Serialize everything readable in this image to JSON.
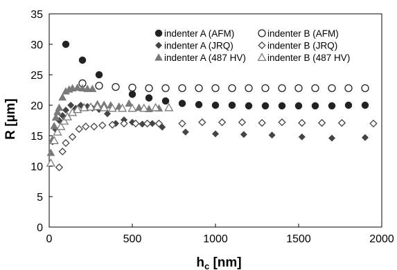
{
  "chart_data": {
    "type": "scatter",
    "xlabel": "h",
    "xlabel_sub": "c",
    "xlabel_unit": " [nm]",
    "ylabel": "R [µm]",
    "xlim": [
      0,
      2000
    ],
    "ylim": [
      0,
      35
    ],
    "x_ticks": [
      0,
      500,
      1000,
      1500,
      2000
    ],
    "y_ticks": [
      0,
      5,
      10,
      15,
      20,
      25,
      30,
      35
    ],
    "grid": false,
    "legend_position": "top-right",
    "series": [
      {
        "name": "indenter A  (AFM)",
        "marker": "circle-filled",
        "color": "#222222",
        "x": [
          100,
          200,
          300,
          400,
          500,
          600,
          700,
          800,
          900,
          1000,
          1100,
          1200,
          1300,
          1400,
          1500,
          1600,
          1700,
          1800,
          1900
        ],
        "y": [
          30,
          27.4,
          25,
          23,
          21.8,
          21.2,
          20.7,
          20.3,
          20.1,
          20,
          20,
          19.9,
          19.9,
          19.9,
          19.9,
          19.9,
          19.9,
          20,
          20
        ]
      },
      {
        "name": "indenter B  (AFM)",
        "marker": "circle-open",
        "color": "#222222",
        "x": [
          200,
          300,
          400,
          500,
          600,
          700,
          800,
          900,
          1000,
          1100,
          1200,
          1300,
          1400,
          1500,
          1600,
          1700,
          1800,
          1900
        ],
        "y": [
          23.6,
          23.2,
          23,
          22.9,
          22.8,
          22.8,
          22.8,
          22.8,
          22.8,
          22.8,
          22.8,
          22.8,
          22.8,
          22.8,
          22.8,
          22.8,
          22.8,
          22.8
        ]
      },
      {
        "name": "indenter A  (JRQ)",
        "marker": "diamond-filled",
        "color": "#444444",
        "x": [
          20,
          40,
          60,
          80,
          100,
          130,
          160,
          190,
          230,
          260,
          300,
          350,
          400,
          450,
          500,
          560,
          620,
          680,
          820,
          1000,
          1170,
          1340,
          1520,
          1700,
          1900
        ],
        "y": [
          14,
          16,
          17.5,
          18.3,
          19.2,
          20,
          19.5,
          20,
          19.8,
          19.5,
          19.3,
          18.6,
          17,
          17.6,
          17.2,
          16.9,
          17,
          16.4,
          15.6,
          15.3,
          15.2,
          15.1,
          14.8,
          14.6,
          14.7
        ]
      },
      {
        "name": "indenter B  (JRQ)",
        "marker": "diamond-open",
        "color": "#444444",
        "x": [
          60,
          80,
          100,
          140,
          180,
          220,
          270,
          320,
          380,
          450,
          520,
          590,
          660,
          800,
          920,
          1040,
          1160,
          1280,
          1400,
          1520,
          1640,
          1760,
          1950
        ],
        "y": [
          9.8,
          12.4,
          13.8,
          14.8,
          16.1,
          16.5,
          16.5,
          16.7,
          16.8,
          17,
          17,
          17,
          17,
          17,
          17.2,
          17.2,
          17.2,
          17.1,
          17.2,
          17.1,
          17.1,
          17.1,
          17
        ]
      },
      {
        "name": "indenter A  (487 HV)",
        "marker": "triangle-filled",
        "color": "#7a7a7a",
        "x": [
          10,
          20,
          30,
          40,
          50,
          60,
          80,
          100,
          120,
          140,
          170,
          200,
          230,
          260,
          290,
          330,
          370,
          420,
          480,
          540,
          600,
          660,
          720
        ],
        "y": [
          12.2,
          14.4,
          16.6,
          18,
          18.9,
          19.6,
          21.3,
          22.3,
          22.6,
          22.8,
          22.9,
          22.8,
          22.7,
          22.7,
          20.2,
          20.1,
          20,
          19.8,
          20.3,
          19.6,
          19.4,
          19.5,
          19.6
        ]
      },
      {
        "name": "indenter B  (487 HV)",
        "marker": "triangle-open",
        "color": "#7a7a7a",
        "x": [
          10,
          30,
          50,
          70,
          90,
          110,
          140,
          170,
          210,
          250,
          290,
          330,
          380,
          440,
          500,
          570,
          640,
          720
        ],
        "y": [
          10.5,
          14.2,
          15.6,
          16.5,
          17.4,
          18.1,
          18.8,
          19.3,
          19.6,
          19.7,
          19.8,
          19.6,
          19.5,
          19.5,
          19.5,
          19.5,
          19.6,
          19.6
        ]
      }
    ]
  }
}
